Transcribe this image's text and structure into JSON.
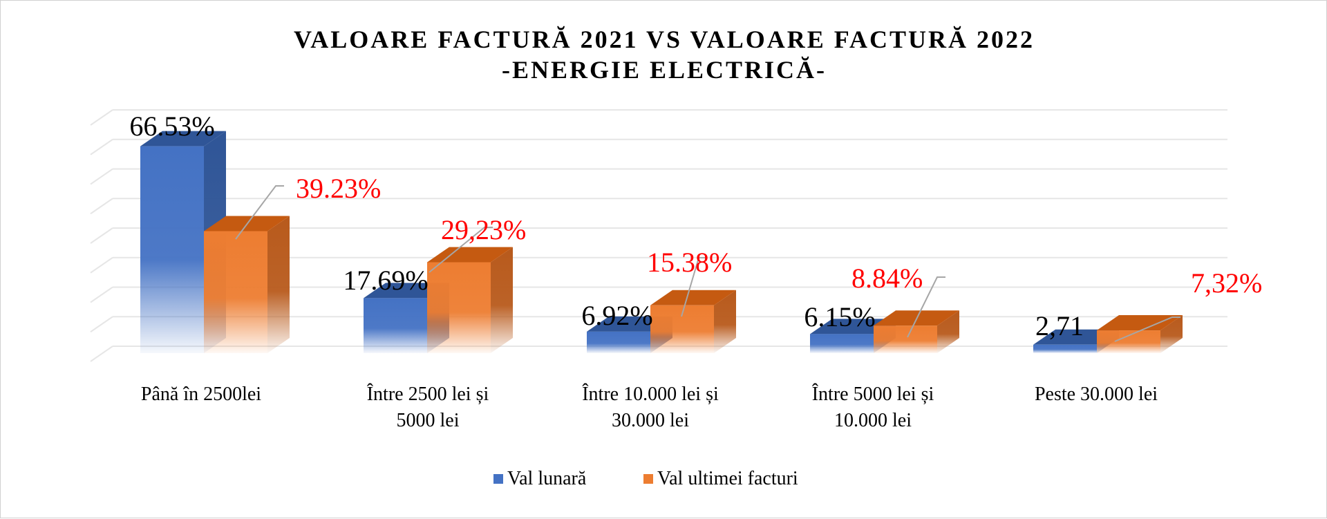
{
  "chart_data": {
    "type": "bar",
    "title": "VALOARE FACTURĂ 2021 VS VALOARE FACTURĂ 2022",
    "subtitle": "-ENERGIE ELECTRICĂ-",
    "categories": [
      [
        "Până în 2500lei"
      ],
      [
        "Între 2500 lei și",
        "5000 lei"
      ],
      [
        "Între 10.000 lei și",
        "30.000 lei"
      ],
      [
        "Între 5000 lei și",
        "10.000 lei"
      ],
      [
        "Peste 30.000 lei"
      ]
    ],
    "series": [
      {
        "name": "Val lunară",
        "color": "#4472c4",
        "values": [
          66.53,
          17.69,
          6.92,
          6.15,
          2.71
        ],
        "labels": [
          "66.53%",
          "17.69%",
          "6.92%",
          "6.15%",
          "2,71"
        ]
      },
      {
        "name": "Val ultimei facturi",
        "color": "#ed7d31",
        "values": [
          39.23,
          29.23,
          15.38,
          8.84,
          7.32
        ],
        "labels": [
          "39.23%",
          "29,23%",
          "15.38%",
          "8.84%",
          "7,32%"
        ]
      }
    ],
    "ylim": [
      0,
      70
    ],
    "grid": true,
    "legend": "bottom"
  }
}
